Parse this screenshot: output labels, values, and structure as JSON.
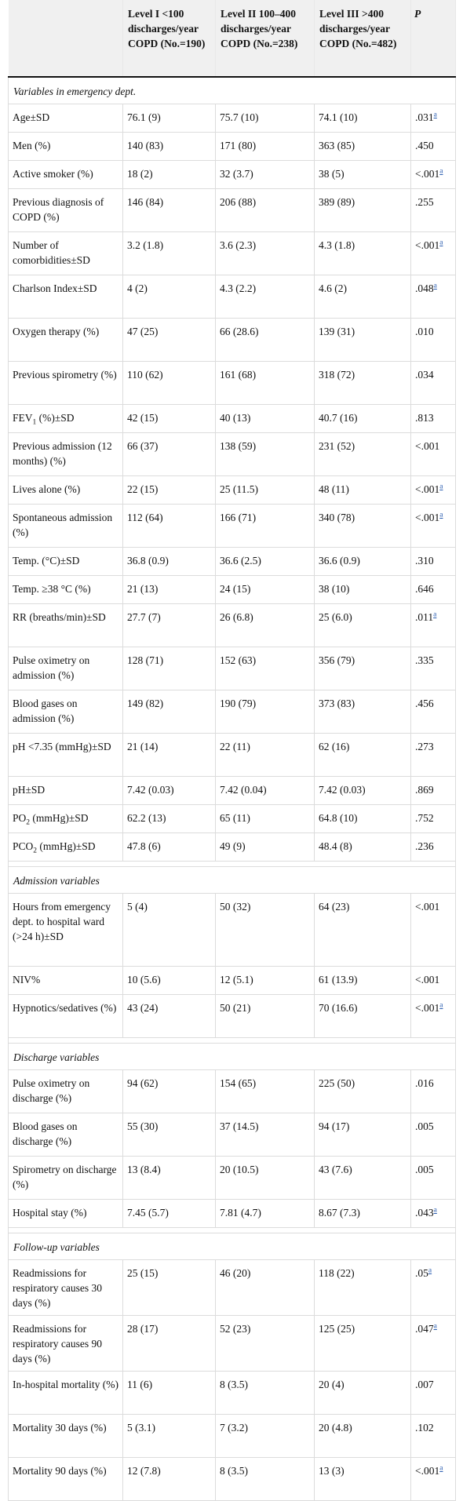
{
  "header": {
    "col0": "",
    "col1": "Level I <100 discharges/year COPD (No.=190)",
    "col2": "Level II 100–400 discharges/year COPD (No.=238)",
    "col3": "Level III >400 discharges/year COPD (No.=482)",
    "col4": "P"
  },
  "footnote_mark": "a",
  "sections": [
    {
      "title": "Variables in emergency dept.",
      "rows": [
        {
          "label": "Age±SD",
          "l1": "76.1 (9)",
          "l2": "75.7 (10)",
          "l3": "74.1 (10)",
          "p": ".031",
          "fn": true,
          "h": 1
        },
        {
          "label": "Men (%)",
          "l1": "140 (83)",
          "l2": "171 (80)",
          "l3": "363 (85)",
          "p": ".450",
          "fn": false,
          "h": 1
        },
        {
          "label": "Active smoker (%)",
          "l1": "18 (2)",
          "l2": "32 (3.7)",
          "l3": "38 (5)",
          "p": "<.001",
          "fn": true,
          "h": 1
        },
        {
          "label": "Previous diagnosis of COPD (%)",
          "l1": "146 (84)",
          "l2": "206 (88)",
          "l3": "389 (89)",
          "p": ".255",
          "fn": false,
          "h": 2
        },
        {
          "label": "Number of comorbidities±SD",
          "l1": "3.2 (1.8)",
          "l2": "3.6 (2.3)",
          "l3": "4.3 (1.8)",
          "p": "<.001",
          "fn": true,
          "h": 2
        },
        {
          "label": "Charlson Index±SD",
          "l1": "4 (2)",
          "l2": "4.3 (2.2)",
          "l3": "4.6 (2)",
          "p": ".048",
          "fn": true,
          "h": 2
        },
        {
          "label": "Oxygen therapy (%)",
          "l1": "47 (25)",
          "l2": "66 (28.6)",
          "l3": "139 (31)",
          "p": ".010",
          "fn": false,
          "h": 2
        },
        {
          "label": "Previous spirometry (%)",
          "l1": "110 (62)",
          "l2": "161 (68)",
          "l3": "318 (72)",
          "p": ".034",
          "fn": false,
          "h": 2
        },
        {
          "label_pre": "FEV",
          "label_sub": "1",
          "label_post": " (%)±SD",
          "l1": "42 (15)",
          "l2": "40 (13)",
          "l3": "40.7 (16)",
          "p": ".813",
          "fn": false,
          "h": 1
        },
        {
          "label": "Previous admission (12 months) (%)",
          "l1": "66 (37)",
          "l2": "138 (59)",
          "l3": "231 (52)",
          "p": "<.001",
          "fn": false,
          "h": 2
        },
        {
          "label": "Lives alone (%)",
          "l1": "22 (15)",
          "l2": "25 (11.5)",
          "l3": "48 (11)",
          "p": "<.001",
          "fn": true,
          "h": 1
        },
        {
          "label": "Spontaneous admission (%)",
          "l1": "112 (64)",
          "l2": "166 (71)",
          "l3": "340 (78)",
          "p": "<.001",
          "fn": true,
          "h": 2
        },
        {
          "label": "Temp. (°C)±SD",
          "l1": "36.8 (0.9)",
          "l2": "36.6 (2.5)",
          "l3": "36.6 (0.9)",
          "p": ".310",
          "fn": false,
          "h": 1
        },
        {
          "label": "Temp. ≥38 °C (%)",
          "l1": "21 (13)",
          "l2": "24 (15)",
          "l3": "38 (10)",
          "p": ".646",
          "fn": false,
          "h": 1
        },
        {
          "label": "RR (breaths/min)±SD",
          "l1": "27.7 (7)",
          "l2": "26 (6.8)",
          "l3": "25 (6.0)",
          "p": ".011",
          "fn": true,
          "h": 2
        },
        {
          "label": "Pulse oximetry on admission (%)",
          "l1": "128 (71)",
          "l2": "152 (63)",
          "l3": "356 (79)",
          "p": ".335",
          "fn": false,
          "h": 2
        },
        {
          "label": "Blood gases on admission (%)",
          "l1": "149 (82)",
          "l2": "190 (79)",
          "l3": "373 (83)",
          "p": ".456",
          "fn": false,
          "h": 2
        },
        {
          "label": "pH <7.35 (mmHg)±SD",
          "l1": "21 (14)",
          "l2": "22 (11)",
          "l3": "62 (16)",
          "p": ".273",
          "fn": false,
          "h": 2
        },
        {
          "label": "pH±SD",
          "l1": "7.42 (0.03)",
          "l2": "7.42 (0.04)",
          "l3": "7.42 (0.03)",
          "p": ".869",
          "fn": false,
          "h": 1
        },
        {
          "label_pre": "PO",
          "label_sub": "2",
          "label_post": " (mmHg)±SD",
          "l1": "62.2 (13)",
          "l2": "65 (11)",
          "l3": "64.8 (10)",
          "p": ".752",
          "fn": false,
          "h": 1
        },
        {
          "label_pre": "PCO",
          "label_sub": "2",
          "label_post": " (mmHg)±SD",
          "l1": "47.8 (6)",
          "l2": "49 (9)",
          "l3": "48.4 (8)",
          "p": ".236",
          "fn": false,
          "h": 1
        }
      ]
    },
    {
      "title": "Admission variables",
      "rows": [
        {
          "label": "Hours from emergency dept. to hospital ward (>24 h)±SD",
          "l1": "5 (4)",
          "l2": "50 (32)",
          "l3": "64 (23)",
          "p": "<.001",
          "fn": false,
          "h": 4
        },
        {
          "label": "NIV%",
          "l1": "10 (5.6)",
          "l2": "12 (5.1)",
          "l3": "61 (13.9)",
          "p": "<.001",
          "fn": false,
          "h": 1
        },
        {
          "label": "Hypnotics/sedatives (%)",
          "l1": "43 (24)",
          "l2": "50 (21)",
          "l3": "70 (16.6)",
          "p": "<.001",
          "fn": true,
          "h": 2
        }
      ]
    },
    {
      "title": "Discharge variables",
      "rows": [
        {
          "label": "Pulse oximetry on discharge (%)",
          "l1": "94 (62)",
          "l2": "154 (65)",
          "l3": "225 (50)",
          "p": ".016",
          "fn": false,
          "h": 2
        },
        {
          "label": "Blood gases on discharge (%)",
          "l1": "55 (30)",
          "l2": "37 (14.5)",
          "l3": "94 (17)",
          "p": ".005",
          "fn": false,
          "h": 2
        },
        {
          "label": "Spirometry on discharge (%)",
          "l1": "13 (8.4)",
          "l2": "20 (10.5)",
          "l3": "43 (7.6)",
          "p": ".005",
          "fn": false,
          "h": 2
        },
        {
          "label": "Hospital stay (%)",
          "l1": "7.45 (5.7)",
          "l2": "7.81 (4.7)",
          "l3": "8.67 (7.3)",
          "p": ".043",
          "fn": true,
          "h": 1
        }
      ]
    },
    {
      "title": "Follow-up variables",
      "rows": [
        {
          "label": "Readmissions for respiratory causes 30 days (%)",
          "l1": "25 (15)",
          "l2": "46 (20)",
          "l3": "118 (22)",
          "p": ".05",
          "fn": true,
          "h": 3
        },
        {
          "label": "Readmissions for respiratory causes 90 days (%)",
          "l1": "28 (17)",
          "l2": "52 (23)",
          "l3": "125 (25)",
          "p": ".047",
          "fn": true,
          "h": 3
        },
        {
          "label": "In-hospital mortality (%)",
          "l1": "11 (6)",
          "l2": "8 (3.5)",
          "l3": "20 (4)",
          "p": ".007",
          "fn": false,
          "h": 2
        },
        {
          "label": "Mortality 30 days (%)",
          "l1": "5 (3.1)",
          "l2": "7 (3.2)",
          "l3": "20 (4.8)",
          "p": ".102",
          "fn": false,
          "h": 2
        },
        {
          "label": "Mortality 90 days (%)",
          "l1": "12 (7.8)",
          "l2": "8 (3.5)",
          "l3": "13 (3)",
          "p": "<.001",
          "fn": true,
          "h": 2
        }
      ]
    }
  ]
}
